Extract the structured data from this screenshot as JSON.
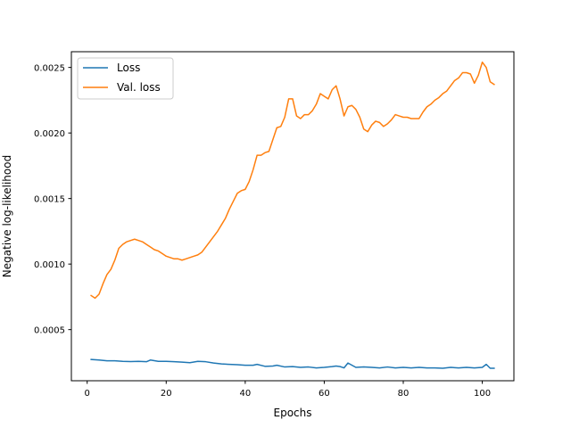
{
  "chart_data": {
    "type": "line",
    "xlabel": "Epochs",
    "ylabel": "Negative log-likelihood",
    "xlim": [
      -4,
      108
    ],
    "ylim": [
      0.00011,
      0.00262
    ],
    "xticks": [
      0,
      20,
      40,
      60,
      80,
      100
    ],
    "xtick_labels": [
      "0",
      "20",
      "40",
      "60",
      "80",
      "100"
    ],
    "yticks": [
      0.0005,
      0.001,
      0.0015,
      0.002,
      0.0025
    ],
    "ytick_labels": [
      "0.0005",
      "0.0010",
      "0.0015",
      "0.0020",
      "0.0025"
    ],
    "grid": false,
    "legend_position": "top-left",
    "series": [
      {
        "name": "Loss",
        "color": "#1f77b4",
        "x": [
          1,
          3,
          5,
          7,
          9,
          11,
          13,
          15,
          16,
          18,
          20,
          22,
          24,
          26,
          28,
          30,
          32,
          34,
          36,
          38,
          40,
          42,
          43,
          45,
          47,
          48,
          50,
          52,
          54,
          56,
          58,
          60,
          62,
          63,
          64,
          65,
          66,
          68,
          70,
          72,
          74,
          76,
          78,
          80,
          82,
          84,
          86,
          88,
          90,
          92,
          94,
          96,
          98,
          100,
          101,
          102,
          103
        ],
        "values": [
          0.000272,
          0.000268,
          0.000262,
          0.000262,
          0.000258,
          0.000256,
          0.000258,
          0.000255,
          0.000268,
          0.000258,
          0.000258,
          0.000255,
          0.000252,
          0.000248,
          0.000258,
          0.000255,
          0.000245,
          0.000238,
          0.000235,
          0.000232,
          0.000228,
          0.000228,
          0.000235,
          0.00022,
          0.000222,
          0.000228,
          0.000215,
          0.000218,
          0.000212,
          0.000215,
          0.000208,
          0.000212,
          0.000218,
          0.000222,
          0.000218,
          0.000208,
          0.000245,
          0.000212,
          0.000215,
          0.000212,
          0.000208,
          0.000215,
          0.000208,
          0.000212,
          0.000208,
          0.000212,
          0.000208,
          0.000208,
          0.000205,
          0.000212,
          0.000208,
          0.000212,
          0.000208,
          0.000212,
          0.000235,
          0.000205,
          0.000205
        ]
      },
      {
        "name": "Val. loss",
        "color": "#ff7f0e",
        "x": [
          1,
          2,
          3,
          4,
          5,
          6,
          7,
          8,
          9,
          10,
          11,
          12,
          13,
          14,
          15,
          16,
          17,
          18,
          19,
          20,
          21,
          22,
          23,
          24,
          25,
          26,
          27,
          28,
          29,
          30,
          31,
          32,
          33,
          34,
          35,
          36,
          37,
          38,
          39,
          40,
          41,
          42,
          43,
          44,
          45,
          46,
          47,
          48,
          49,
          50,
          51,
          52,
          53,
          54,
          55,
          56,
          57,
          58,
          59,
          60,
          61,
          62,
          63,
          64,
          65,
          66,
          67,
          68,
          69,
          70,
          71,
          72,
          73,
          74,
          75,
          76,
          77,
          78,
          79,
          80,
          81,
          82,
          83,
          84,
          85,
          86,
          87,
          88,
          89,
          90,
          91,
          92,
          93,
          94,
          95,
          96,
          97,
          98,
          99,
          100,
          101,
          102,
          103
        ],
        "values": [
          0.00076,
          0.00074,
          0.00077,
          0.00085,
          0.00092,
          0.00096,
          0.00103,
          0.00112,
          0.00115,
          0.00117,
          0.00118,
          0.00119,
          0.00118,
          0.00117,
          0.00115,
          0.00113,
          0.00111,
          0.0011,
          0.00108,
          0.00106,
          0.00105,
          0.00104,
          0.00104,
          0.00103,
          0.00104,
          0.00105,
          0.00106,
          0.00107,
          0.00109,
          0.00113,
          0.00117,
          0.00121,
          0.00125,
          0.0013,
          0.00135,
          0.00142,
          0.00148,
          0.00154,
          0.00156,
          0.00157,
          0.00163,
          0.00172,
          0.00183,
          0.00183,
          0.00185,
          0.00186,
          0.00195,
          0.00204,
          0.00205,
          0.00212,
          0.00226,
          0.00226,
          0.00213,
          0.00211,
          0.00214,
          0.00214,
          0.00217,
          0.00222,
          0.0023,
          0.00228,
          0.00226,
          0.00233,
          0.00236,
          0.00226,
          0.00213,
          0.0022,
          0.00221,
          0.00218,
          0.00212,
          0.00203,
          0.00201,
          0.00206,
          0.00209,
          0.00208,
          0.00205,
          0.00207,
          0.0021,
          0.00214,
          0.00213,
          0.00212,
          0.00212,
          0.00211,
          0.00211,
          0.00211,
          0.00216,
          0.0022,
          0.00222,
          0.00225,
          0.00227,
          0.0023,
          0.00232,
          0.00236,
          0.0024,
          0.00242,
          0.00246,
          0.00246,
          0.00245,
          0.00238,
          0.00244,
          0.00254,
          0.0025,
          0.00239,
          0.00237
        ]
      }
    ]
  }
}
